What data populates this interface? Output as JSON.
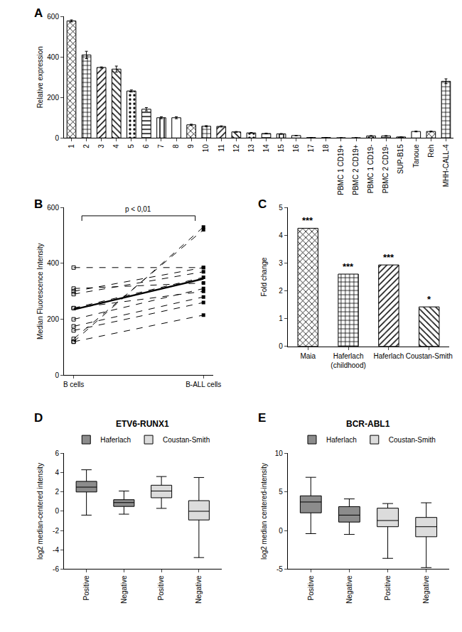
{
  "chart_data": [
    {
      "type": "bar",
      "annotations": [
        {
          "text": "A"
        }
      ],
      "y_label": "Relative expression",
      "categories": [
        "1",
        "2",
        "3",
        "4",
        "5",
        "6",
        "7",
        "8",
        "9",
        "10",
        "11",
        "12",
        "13",
        "14",
        "15",
        "16",
        "17",
        "18",
        "PBMC 1 CD19+",
        "PBMC 2 CD19+",
        "PBMC 1 CD19-",
        "PBMC 2 CD19-",
        "SUP-B15",
        "Tanoue",
        "Reh",
        "MHH-CALL-4"
      ],
      "values": [
        578,
        410,
        348,
        340,
        232,
        142,
        100,
        100,
        65,
        58,
        57,
        30,
        25,
        22,
        20,
        12,
        2,
        2,
        1,
        1,
        10,
        10,
        5,
        32,
        32,
        280
      ],
      "errors": [
        5,
        18,
        3,
        15,
        5,
        8,
        5,
        5,
        3,
        3,
        3,
        2,
        2,
        2,
        2,
        1,
        0.5,
        0.5,
        0.5,
        0.5,
        2,
        2,
        1,
        2,
        2,
        12
      ],
      "color": "#ffffff",
      "ylim": [
        0,
        600
      ],
      "yticks": [
        0,
        200,
        400,
        600
      ],
      "grid": false
    },
    {
      "type": "line",
      "annotations": [
        {
          "text": "B"
        },
        {
          "text": "p < 0,01"
        }
      ],
      "y_label": "Median Fluorescence Intensity",
      "categories": [
        "B cells",
        "B-ALL cells"
      ],
      "color": "#000000",
      "series": [
        {
          "values": [
            120,
            530
          ],
          "line_style": "dash"
        },
        {
          "values": [
            130,
            520
          ],
          "line_style": "dash"
        },
        {
          "values": [
            300,
            385
          ],
          "line_style": "dash"
        },
        {
          "values": [
            385,
            385
          ],
          "line_style": "dash"
        },
        {
          "values": [
            290,
            370
          ],
          "line_style": "dash"
        },
        {
          "values": [
            240,
            350
          ],
          "line_style": "dash"
        },
        {
          "values": [
            310,
            330
          ],
          "line_style": "dash"
        },
        {
          "values": [
            200,
            310
          ],
          "line_style": "dash"
        },
        {
          "values": [
            175,
            280
          ],
          "line_style": "dash"
        },
        {
          "values": [
            160,
            260
          ],
          "line_style": "dash"
        },
        {
          "values": [
            240,
            300
          ],
          "line_style": "dash"
        },
        {
          "values": [
            120,
            215
          ],
          "line_style": "dash"
        },
        {
          "values": [
            235,
            345
          ],
          "line_style": "solid"
        }
      ],
      "ylim": [
        0,
        600
      ],
      "yticks": [
        0,
        200,
        400,
        600
      ],
      "grid": false
    },
    {
      "type": "bar",
      "annotations": [
        {
          "text": "C"
        },
        {
          "text": "***",
          "category": "Maia"
        },
        {
          "text": "***",
          "category": "Haferlach (childhood)"
        },
        {
          "text": "***",
          "category": "Haferlach"
        },
        {
          "text": "*",
          "category": "Coustan-Smith"
        }
      ],
      "y_label": "Fold change",
      "categories": [
        "Maia",
        "Haferlach (childhood)",
        "Haferlach",
        "Coustan-Smith"
      ],
      "values": [
        4.25,
        2.6,
        2.93,
        1.42
      ],
      "color": "#ffffff",
      "ylim": [
        0,
        5
      ],
      "yticks": [
        0,
        1,
        2,
        3,
        4,
        5
      ],
      "grid": false
    },
    {
      "type": "box",
      "title": "ETV6-RUNX1",
      "annotations": [
        {
          "text": "D"
        }
      ],
      "y_label": "log2 median-centered intensity",
      "categories": [
        "Positive",
        "Negative",
        "Positive",
        "Negative"
      ],
      "series": [
        {
          "name": "Haferlach",
          "color": "#8c8c8c",
          "values": [
            {
              "min": -0.4,
              "q1": 2.0,
              "median": 2.5,
              "q3": 3.1,
              "max": 4.3
            },
            {
              "min": -0.3,
              "q1": 0.5,
              "median": 0.9,
              "q3": 1.2,
              "max": 2.1
            },
            null,
            null
          ]
        },
        {
          "name": "Coustan-Smith",
          "color": "#dcdcdc",
          "values": [
            null,
            null,
            {
              "min": 0.3,
              "q1": 1.4,
              "median": 2.1,
              "q3": 2.7,
              "max": 3.6
            },
            {
              "min": -4.8,
              "q1": -0.9,
              "median": 0.0,
              "q3": 1.1,
              "max": 3.5
            }
          ]
        }
      ],
      "legend": "top",
      "ylim": [
        -6,
        6
      ],
      "yticks": [
        -6,
        -4,
        -2,
        0,
        2,
        4,
        6
      ],
      "grid": false
    },
    {
      "type": "box",
      "title": "BCR-ABL1",
      "annotations": [
        {
          "text": "E"
        }
      ],
      "y_label": "log2 median centered-intensity",
      "categories": [
        "Positive",
        "Negative",
        "Positive",
        "Negative"
      ],
      "series": [
        {
          "name": "Haferlach",
          "color": "#8c8c8c",
          "values": [
            {
              "min": -0.4,
              "q1": 2.3,
              "median": 3.7,
              "q3": 4.5,
              "max": 6.9
            },
            {
              "min": -0.5,
              "q1": 1.1,
              "median": 2.0,
              "q3": 3.1,
              "max": 4.1
            },
            null,
            null
          ]
        },
        {
          "name": "Coustan-Smith",
          "color": "#dcdcdc",
          "values": [
            null,
            null,
            {
              "min": -3.6,
              "q1": 0.5,
              "median": 1.3,
              "q3": 2.9,
              "max": 3.5
            },
            {
              "min": -4.8,
              "q1": -0.8,
              "median": 0.5,
              "q3": 1.7,
              "max": 3.6
            }
          ]
        }
      ],
      "legend": "top",
      "ylim": [
        -5,
        10
      ],
      "yticks": [
        -5,
        0,
        5,
        10
      ],
      "grid": false
    }
  ]
}
